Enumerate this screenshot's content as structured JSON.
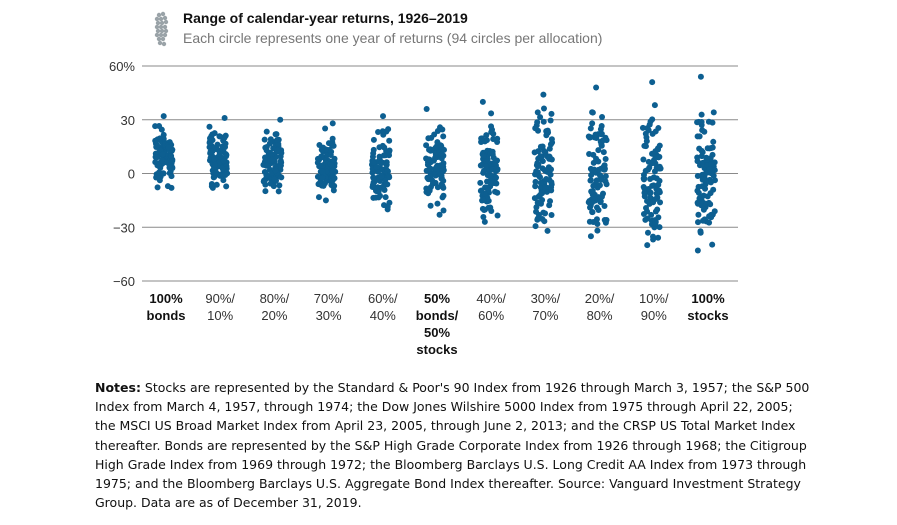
{
  "chart_data": {
    "type": "scatter",
    "title": "Range of calendar-year returns, 1926–2019",
    "subtitle": "Each circle represents one year of returns (94 circles per allocation)",
    "ylim": [
      -60,
      60
    ],
    "yticks": [
      "60%",
      "30",
      "0",
      "−30",
      "−60"
    ],
    "ytick_values": [
      60,
      30,
      0,
      -30,
      -60
    ],
    "grid": true,
    "marker_color": "#0d5f91",
    "categories": [
      {
        "lines": [
          "100%",
          "bonds"
        ],
        "bold": true
      },
      {
        "lines": [
          "90%/",
          "10%"
        ],
        "bold": false
      },
      {
        "lines": [
          "80%/",
          "20%"
        ],
        "bold": false
      },
      {
        "lines": [
          "70%/",
          "30%"
        ],
        "bold": false
      },
      {
        "lines": [
          "60%/",
          "40%"
        ],
        "bold": false
      },
      {
        "lines": [
          "50%",
          "bonds/",
          "50%",
          "stocks"
        ],
        "bold": true
      },
      {
        "lines": [
          "40%/",
          "60%"
        ],
        "bold": false
      },
      {
        "lines": [
          "30%/",
          "70%"
        ],
        "bold": false
      },
      {
        "lines": [
          "20%/",
          "80%"
        ],
        "bold": false
      },
      {
        "lines": [
          "10%/",
          "90%"
        ],
        "bold": false
      },
      {
        "lines": [
          "100%",
          "stocks"
        ],
        "bold": true
      }
    ],
    "series": [
      {
        "min": -8,
        "max": 32
      },
      {
        "min": -8,
        "max": 31
      },
      {
        "min": -10,
        "max": 30
      },
      {
        "min": -15,
        "max": 28
      },
      {
        "min": -20,
        "max": 32
      },
      {
        "min": -23,
        "max": 36
      },
      {
        "min": -27,
        "max": 40
      },
      {
        "min": -32,
        "max": 44
      },
      {
        "min": -35,
        "max": 48
      },
      {
        "min": -40,
        "max": 51
      },
      {
        "min": -43,
        "max": 54
      }
    ]
  },
  "notes": {
    "label": "Notes:",
    "text": " Stocks are represented by the Standard & Poor's 90 Index from 1926 through March 3, 1957; the S&P 500 Index from March 4, 1957, through 1974; the Dow Jones Wilshire 5000 Index from 1975 through April 22, 2005; the MSCI US Broad Market Index from April 23, 2005, through June 2, 2013; and the CRSP US Total Market Index thereafter. Bonds are represented by the S&P High Grade Corporate Index from 1926 through 1968; the Citigroup High Grade Index from 1969 through 1972; the Bloomberg Barclays U.S. Long Credit AA Index from 1973 through 1975; and the Bloomberg Barclays U.S. Aggregate Bond Index thereafter. Source: Vanguard Investment Strategy Group. Data are as of December 31, 2019."
  }
}
